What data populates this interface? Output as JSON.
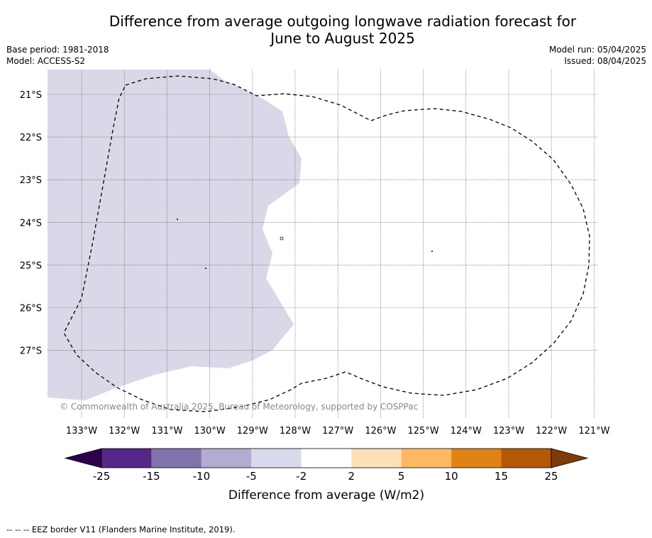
{
  "header": {
    "title_line1": "Difference from average outgoing longwave radiation forecast for",
    "title_line2": "June to August 2025",
    "base_period": "Base period: 1981-2018",
    "model": "Model: ACCESS-S2",
    "model_run": "Model run: 05/04/2025",
    "issued": "Issued: 08/04/2025"
  },
  "map": {
    "lat_labels": [
      "21°S",
      "22°S",
      "23°S",
      "24°S",
      "25°S",
      "26°S",
      "27°S"
    ],
    "lon_labels": [
      "133°W",
      "132°W",
      "131°W",
      "130°W",
      "129°W",
      "128°W",
      "127°W",
      "126°W",
      "125°W",
      "124°W",
      "123°W",
      "122°W",
      "121°W"
    ],
    "copyright": "© Commonwealth of Australia 2025, Bureau of Meteorology, supported by COSPPac",
    "fill_color": "#d8d8e8"
  },
  "colorbar": {
    "ticks": [
      "-25",
      "-15",
      "-10",
      "-5",
      "-2",
      "2",
      "5",
      "10",
      "15",
      "25"
    ],
    "colors": [
      "#542788",
      "#8073ac",
      "#b2abd2",
      "#d8daeb",
      "#ffffff",
      "#fee0b6",
      "#fdb863",
      "#e08214",
      "#b35806"
    ],
    "under_color": "#2d004b",
    "over_color": "#7f3b08",
    "label": "Difference from average (W/m2)"
  },
  "footer": {
    "legend_text": "--  --  -- EEZ border V11 (Flanders Marine Institute, 2019)."
  }
}
